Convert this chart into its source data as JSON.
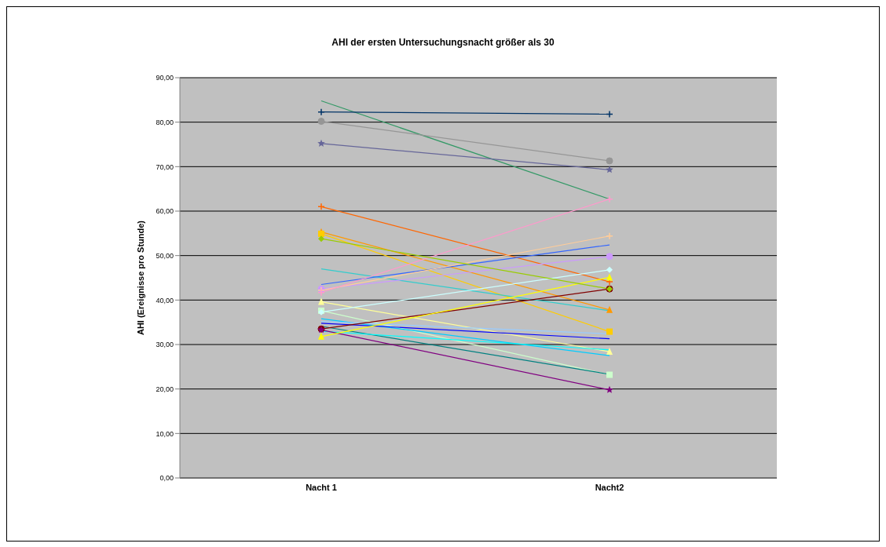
{
  "chart_data": {
    "type": "line",
    "title": "AHI der ersten Untersuchungsnacht größer als 30",
    "ylabel": "AHI (Ereignisse pro Stunde)",
    "categories": [
      "Nacht 1",
      "Nacht2"
    ],
    "ylim": [
      0,
      90
    ],
    "yticks": [
      {
        "value": 0,
        "label": "0,00"
      },
      {
        "value": 10,
        "label": "10,00"
      },
      {
        "value": 20,
        "label": "20,00"
      },
      {
        "value": 30,
        "label": "30,00"
      },
      {
        "value": 40,
        "label": "40,00"
      },
      {
        "value": 50,
        "label": "50,00"
      },
      {
        "value": 60,
        "label": "60,00"
      },
      {
        "value": 70,
        "label": "70,00"
      },
      {
        "value": 80,
        "label": "80,00"
      },
      {
        "value": 90,
        "label": "90,00"
      }
    ],
    "grid": "y",
    "legend": false,
    "line_style": "solid",
    "series": [
      {
        "color": "#339966",
        "values": [
          84.8,
          62.7
        ],
        "marker": "none"
      },
      {
        "color": "#003366",
        "values": [
          82.3,
          81.8
        ],
        "marker": "cross"
      },
      {
        "color": "#969696",
        "values": [
          80.2,
          71.3
        ],
        "marker": "circle"
      },
      {
        "color": "#666699",
        "values": [
          75.2,
          69.3
        ],
        "marker": "star"
      },
      {
        "color": "#ff6600",
        "values": [
          61.0,
          44.1
        ],
        "marker": "cross"
      },
      {
        "color": "#ff9900",
        "values": [
          55.3,
          37.8
        ],
        "marker": "triangle"
      },
      {
        "color": "#ffcc00",
        "values": [
          54.9,
          32.9
        ],
        "marker": "square"
      },
      {
        "color": "#33cccc",
        "values": [
          47.0,
          37.6
        ],
        "marker": "none"
      },
      {
        "color": "#3366ff",
        "values": [
          43.5,
          52.4
        ],
        "marker": "none"
      },
      {
        "color": "#cc99ff",
        "values": [
          42.5,
          49.8
        ],
        "marker": "circle"
      },
      {
        "color": "#ffcc99",
        "values": [
          42.2,
          54.4
        ],
        "marker": "cross"
      },
      {
        "color": "#ff99cc",
        "values": [
          41.7,
          62.7
        ],
        "marker": "cross"
      },
      {
        "color": "#ffff99",
        "values": [
          39.6,
          28.4
        ],
        "marker": "triangle"
      },
      {
        "color": "#ccffcc",
        "values": [
          37.6,
          23.2
        ],
        "marker": "square"
      },
      {
        "color": "#ccffff",
        "values": [
          37.3,
          46.8
        ],
        "marker": "diamond"
      },
      {
        "color": "#00ccff",
        "values": [
          35.8,
          27.5
        ],
        "marker": "none"
      },
      {
        "color": "#99ccff",
        "values": [
          35.2,
          32.4
        ],
        "marker": "none"
      },
      {
        "color": "#0000ff",
        "values": [
          34.8,
          31.3
        ],
        "marker": "none"
      },
      {
        "color": "#008080",
        "values": [
          34.1,
          23.3
        ],
        "marker": "none"
      },
      {
        "color": "#800000",
        "values": [
          33.5,
          42.5
        ],
        "marker": "circle"
      },
      {
        "color": "#00ffff",
        "values": [
          33.0,
          28.8
        ],
        "marker": "none"
      },
      {
        "color": "#800080",
        "values": [
          33.3,
          19.8
        ],
        "marker": "star"
      },
      {
        "color": "#ffff00",
        "values": [
          31.8,
          45.1
        ],
        "marker": "triangle"
      },
      {
        "color": "#99cc00",
        "values": [
          53.8,
          42.5
        ],
        "marker": "diamond"
      }
    ]
  }
}
